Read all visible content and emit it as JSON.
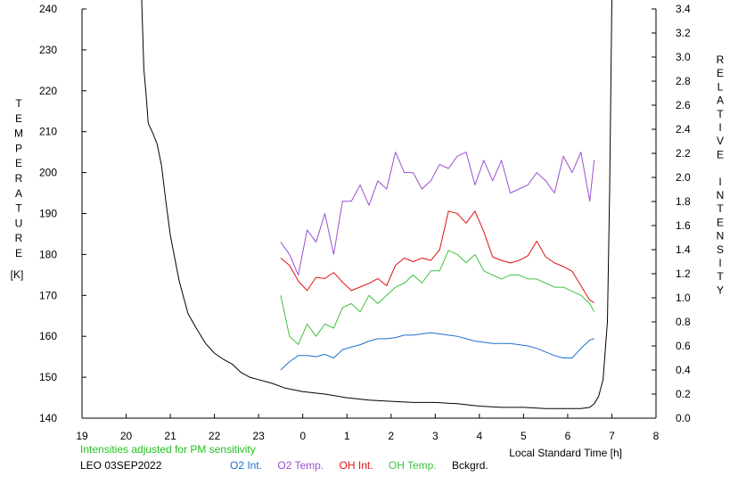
{
  "chart_data": {
    "type": "line",
    "ylabel_left": "TEMPERATURE",
    "ylabel_left_unit": "[K]",
    "ylabel_right": "RELATIVE INTENSITY",
    "xlabel": "Local Standard Time [h]",
    "note": "Intensities adjusted for PM sensitivity",
    "station_date": "LEO 03SEP2022",
    "x_ticks": [
      "19",
      "20",
      "21",
      "22",
      "23",
      "0",
      "1",
      "2",
      "3",
      "4",
      "5",
      "6",
      "7",
      "8"
    ],
    "xlim": [
      19,
      32
    ],
    "ylim_left": [
      140,
      240
    ],
    "ylim_right": [
      0.0,
      3.4
    ],
    "y_left_ticks": [
      "140",
      "150",
      "160",
      "170",
      "180",
      "190",
      "200",
      "210",
      "220",
      "230",
      "240"
    ],
    "y_right_ticks": [
      "0.0",
      "0.2",
      "0.4",
      "0.6",
      "0.8",
      "1.0",
      "1.2",
      "1.4",
      "1.6",
      "1.8",
      "2.0",
      "2.2",
      "2.4",
      "2.6",
      "2.8",
      "3.0",
      "3.2",
      "3.4"
    ],
    "grid": false,
    "legend_position": "bottom",
    "series": [
      {
        "name": "O2 Int.",
        "color": "#1f6fd0",
        "axis": "right",
        "x": [
          23.5,
          23.7,
          23.9,
          24.1,
          24.3,
          24.5,
          24.7,
          24.9,
          25.1,
          25.3,
          25.5,
          25.7,
          25.9,
          26.1,
          26.3,
          26.5,
          26.7,
          26.9,
          27.1,
          27.3,
          27.5,
          27.7,
          27.9,
          28.1,
          28.3,
          28.5,
          28.7,
          28.9,
          29.1,
          29.3,
          29.5,
          29.7,
          29.9,
          30.1,
          30.3,
          30.5,
          30.6
        ],
        "values": [
          0.4,
          0.47,
          0.52,
          0.52,
          0.51,
          0.53,
          0.5,
          0.57,
          0.59,
          0.61,
          0.64,
          0.66,
          0.66,
          0.67,
          0.69,
          0.69,
          0.7,
          0.71,
          0.7,
          0.69,
          0.68,
          0.66,
          0.64,
          0.63,
          0.62,
          0.62,
          0.62,
          0.61,
          0.6,
          0.58,
          0.55,
          0.52,
          0.5,
          0.5,
          0.58,
          0.65,
          0.66
        ]
      },
      {
        "name": "O2 Temp.",
        "color": "#9b4fd0",
        "axis": "left",
        "x": [
          23.5,
          23.7,
          23.9,
          24.1,
          24.3,
          24.5,
          24.7,
          24.9,
          25.1,
          25.3,
          25.5,
          25.7,
          25.9,
          26.1,
          26.3,
          26.5,
          26.7,
          26.9,
          27.1,
          27.3,
          27.5,
          27.7,
          27.9,
          28.1,
          28.3,
          28.5,
          28.7,
          28.9,
          29.1,
          29.3,
          29.5,
          29.7,
          29.9,
          30.1,
          30.3,
          30.5,
          30.6
        ],
        "values": [
          183,
          180,
          175,
          186,
          183,
          190,
          180,
          193,
          193,
          197,
          192,
          198,
          196,
          205,
          200,
          200,
          196,
          198,
          202,
          201,
          204,
          205,
          197,
          203,
          198,
          203,
          195,
          196,
          197,
          200,
          198,
          195,
          204,
          200,
          205,
          193,
          203
        ]
      },
      {
        "name": "OH Int.",
        "color": "#e01010",
        "axis": "right",
        "x": [
          23.5,
          23.7,
          23.9,
          24.1,
          24.3,
          24.5,
          24.7,
          24.9,
          25.1,
          25.3,
          25.5,
          25.7,
          25.9,
          26.1,
          26.3,
          26.5,
          26.7,
          26.9,
          27.1,
          27.3,
          27.5,
          27.7,
          27.9,
          28.1,
          28.3,
          28.5,
          28.7,
          28.9,
          29.1,
          29.3,
          29.5,
          29.7,
          29.9,
          30.1,
          30.3,
          30.5,
          30.6
        ],
        "values": [
          1.33,
          1.27,
          1.14,
          1.06,
          1.17,
          1.16,
          1.21,
          1.13,
          1.06,
          1.09,
          1.12,
          1.16,
          1.1,
          1.27,
          1.33,
          1.3,
          1.33,
          1.31,
          1.4,
          1.72,
          1.7,
          1.62,
          1.72,
          1.55,
          1.34,
          1.31,
          1.29,
          1.31,
          1.35,
          1.47,
          1.34,
          1.29,
          1.26,
          1.22,
          1.1,
          0.98,
          0.96
        ]
      },
      {
        "name": "OH Temp.",
        "color": "#40c040",
        "axis": "left",
        "x": [
          23.5,
          23.7,
          23.9,
          24.1,
          24.3,
          24.5,
          24.7,
          24.9,
          25.1,
          25.3,
          25.5,
          25.7,
          25.9,
          26.1,
          26.3,
          26.5,
          26.7,
          26.9,
          27.1,
          27.3,
          27.5,
          27.7,
          27.9,
          28.1,
          28.3,
          28.5,
          28.7,
          28.9,
          29.1,
          29.3,
          29.5,
          29.7,
          29.9,
          30.1,
          30.3,
          30.5,
          30.6
        ],
        "values": [
          170,
          160,
          158,
          163,
          160,
          163,
          162,
          167,
          168,
          166,
          170,
          168,
          170,
          172,
          173,
          175,
          173,
          176,
          176,
          181,
          180,
          178,
          180,
          176,
          175,
          174,
          175,
          175,
          174,
          174,
          173,
          172,
          172,
          171,
          170,
          168,
          166
        ]
      },
      {
        "name": "Bckgrd.",
        "color": "#000000",
        "axis": "right",
        "x": [
          20.35,
          20.4,
          20.45,
          20.5,
          20.6,
          20.7,
          20.8,
          20.9,
          21.0,
          21.2,
          21.4,
          21.6,
          21.8,
          22.0,
          22.2,
          22.4,
          22.6,
          22.8,
          23.0,
          23.3,
          23.6,
          24.0,
          24.5,
          25.0,
          25.5,
          26.0,
          26.5,
          27.0,
          27.5,
          28.0,
          28.5,
          29.0,
          29.5,
          30.0,
          30.3,
          30.5,
          30.6,
          30.7,
          30.8,
          30.9,
          30.95,
          31.0
        ],
        "values": [
          3.5,
          2.9,
          2.7,
          2.45,
          2.37,
          2.28,
          2.1,
          1.8,
          1.52,
          1.14,
          0.87,
          0.74,
          0.62,
          0.54,
          0.49,
          0.45,
          0.38,
          0.34,
          0.32,
          0.29,
          0.25,
          0.22,
          0.2,
          0.17,
          0.15,
          0.14,
          0.13,
          0.13,
          0.12,
          0.1,
          0.09,
          0.09,
          0.08,
          0.08,
          0.08,
          0.09,
          0.12,
          0.18,
          0.32,
          0.8,
          1.9,
          3.5
        ]
      }
    ]
  }
}
